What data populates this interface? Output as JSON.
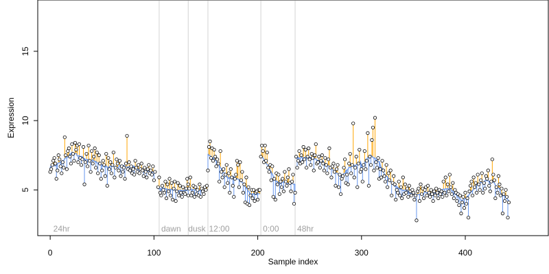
{
  "chart_data": {
    "type": "scatter",
    "xlabel": "Sample index",
    "ylabel": "Expression",
    "xlim": [
      -12,
      480
    ],
    "ylim": [
      1.7,
      18.7
    ],
    "x_ticks": [
      0,
      100,
      200,
      300,
      400
    ],
    "y_ticks": [
      5,
      10,
      15
    ],
    "baseline_width": 7,
    "colors": {
      "above": "#ffa500",
      "below": "#6495ed",
      "point_stroke": "#000000",
      "point_fill": "#ffffff",
      "divider": "#d3d3d3",
      "phase_label": "#a0a0a0"
    },
    "dividers": [
      105,
      133,
      152,
      203,
      236
    ],
    "phases": [
      {
        "label": "24hr",
        "x": 3
      },
      {
        "label": "dawn",
        "x": 107
      },
      {
        "label": "dusk",
        "x": 133
      },
      {
        "label": "12:00",
        "x": 153
      },
      {
        "label": "0:00",
        "x": 205
      },
      {
        "label": "48hr",
        "x": 238
      }
    ],
    "segments": [
      {
        "start": 0,
        "values": [
          6.3,
          6.5,
          6.8,
          7.1,
          7.3,
          6.9,
          5.8,
          6.4,
          7.5,
          7.2,
          6.7,
          6.2,
          7.0,
          6.6,
          8.8,
          7.5,
          6.5,
          7.8,
          8.0,
          7.4,
          6.9,
          8.3,
          7.6,
          7.1,
          8.4,
          7.9,
          8.2,
          7.0,
          8.3,
          7.3,
          6.8,
          7.2,
          8.1,
          5.4,
          7.0,
          7.6,
          6.7,
          8.2,
          7.1,
          6.3,
          7.8,
          6.9,
          7.4,
          8.0,
          6.6,
          7.7,
          6.2,
          7.5,
          6.9,
          5.8,
          6.4,
          7.1,
          6.8,
          6.0,
          7.6,
          5.3,
          7.3,
          6.5,
          7.0,
          6.2,
          6.8,
          7.7,
          5.9,
          6.6,
          7.2,
          6.9,
          6.4,
          7.1,
          6.0,
          6.7,
          6.3,
          6.6,
          5.8,
          6.9,
          8.9,
          6.5,
          7.0,
          6.4,
          6.7,
          6.2,
          6.5,
          6.1,
          7.1,
          6.6,
          6.3,
          6.8,
          6.2,
          6.5,
          6.9,
          6.4,
          6.0,
          6.6,
          6.3,
          5.9,
          6.5,
          6.8,
          6.2,
          6.4,
          6.1,
          6.7,
          5.7,
          6.3
        ]
      },
      {
        "start": 104,
        "values": [
          5.2,
          5.9,
          4.8,
          4.6,
          5.3,
          5.0,
          4.8,
          5.6,
          4.4,
          5.4,
          4.9,
          5.8,
          4.6,
          5.5,
          4.3,
          5.1,
          5.6,
          4.2,
          4.9,
          5.5,
          4.6,
          5.3,
          4.8,
          4.5,
          5.2,
          4.8,
          4.7,
          5.1,
          5.8,
          4.6
        ]
      },
      {
        "start": 133,
        "values": [
          5.4,
          5.1,
          5.9,
          4.6,
          4.8,
          5.3,
          4.5,
          5.2,
          4.7,
          5.0,
          4.6,
          5.4,
          4.5,
          5.1,
          4.9,
          4.7,
          5.2,
          5.0,
          5.3
        ]
      },
      {
        "start": 152,
        "values": [
          6.4,
          8.1,
          8.5,
          7.3,
          8.0,
          7.1,
          7.9,
          7.4,
          6.7,
          7.2,
          6.9,
          5.6,
          7.8,
          6.3,
          5.9,
          6.5,
          5.2,
          6.1,
          6.8,
          5.5,
          6.2,
          4.8,
          6.5,
          5.9,
          5.3,
          4.5,
          5.8,
          6.1,
          7.1,
          6.8,
          5.2,
          7.0,
          5.7,
          6.3,
          4.8,
          5.4,
          4.1,
          5.9,
          4.0,
          5.2,
          3.9,
          4.6,
          5.0,
          4.4,
          5.0,
          4.2,
          4.8,
          4.9,
          4.3,
          5.0,
          5.0
        ]
      },
      {
        "start": 203,
        "values": [
          7.4,
          8.2,
          7.8,
          7.0,
          8.2,
          7.1,
          7.7,
          6.6,
          6.3,
          6.8,
          5.7,
          6.7,
          4.5,
          5.8,
          4.3,
          6.2,
          5.4,
          6.1,
          4.7,
          5.6,
          5.2,
          5.8,
          4.9,
          6.3,
          5.6,
          5.3,
          5.9,
          6.5,
          5.5,
          4.9,
          5.6,
          6.1,
          4.0,
          4.8
        ]
      },
      {
        "start": 237,
        "values": [
          7.4,
          6.6,
          7.1,
          7.8,
          6.9,
          7.5,
          7.0,
          8.1,
          7.2,
          7.9,
          6.6,
          7.4,
          8.0,
          7.2,
          6.8,
          7.6,
          7.3,
          6.4,
          7.5,
          8.3,
          6.9,
          7.0,
          7.4,
          6.6,
          7.1,
          7.5,
          6.9,
          6.4,
          7.3,
          6.8,
          6.2,
          7.2,
          8.0,
          6.6,
          5.9,
          6.7,
          6.9,
          6.3,
          5.3,
          6.5,
          6.8,
          5.2,
          6.1,
          4.7,
          5.8,
          6.0,
          6.6,
          7.2,
          5.5,
          6.1,
          5.4,
          6.9,
          7.6,
          6.2,
          6.8,
          9.8,
          5.9,
          6.6,
          7.4,
          5.2,
          6.9,
          7.9,
          6.3,
          6.5,
          5.6,
          6.8,
          7.8,
          6.5,
          7.1,
          9.1,
          5.3,
          7.4,
          6.8,
          8.6,
          9.5,
          6.4,
          10.2,
          7.0,
          6.6,
          7.3,
          5.8,
          6.5,
          5.9,
          7.1,
          6.4,
          6.0,
          5.6,
          6.8,
          5.2,
          6.2,
          5.7,
          6.4,
          4.6,
          5.5,
          6.0,
          5.4,
          4.3,
          5.0,
          4.8,
          5.6,
          4.6,
          5.2,
          4.4,
          5.9,
          4.7,
          5.4,
          4.8,
          5.1,
          4.5,
          5.3,
          4.9,
          4.6,
          5.0,
          4.8,
          4.3,
          4.6,
          2.8,
          4.9,
          5.1,
          4.2,
          5.4,
          4.7,
          5.1,
          4.4,
          5.0,
          5.2,
          4.6,
          5.3,
          4.8,
          4.5,
          5.0,
          4.7,
          4.2,
          4.9,
          4.6,
          5.1,
          4.8,
          4.4,
          5.0,
          4.7,
          4.9,
          4.5,
          5.6,
          4.8,
          5.9,
          4.6,
          5.4,
          4.9,
          6.1,
          5.2,
          4.7,
          5.5,
          4.4,
          5.0,
          4.8,
          4.2,
          4.7,
          3.9,
          4.6,
          3.3,
          4.1,
          4.5,
          3.7,
          4.8,
          4.0,
          4.4,
          3.0,
          4.9,
          5.3,
          5.6,
          4.6,
          5.9,
          5.2,
          5.5,
          4.8,
          6.1,
          5.4,
          5.0,
          5.7,
          6.2,
          4.8,
          5.5,
          5.1,
          6.0,
          5.8,
          6.4,
          5.3,
          4.9,
          5.6,
          7.2,
          6.1,
          5.7,
          4.4,
          5.2,
          4.8,
          6.0,
          5.4,
          4.6,
          5.1,
          3.3,
          4.7,
          4.2,
          5.0,
          4.5,
          3.0,
          4.1
        ]
      }
    ]
  }
}
